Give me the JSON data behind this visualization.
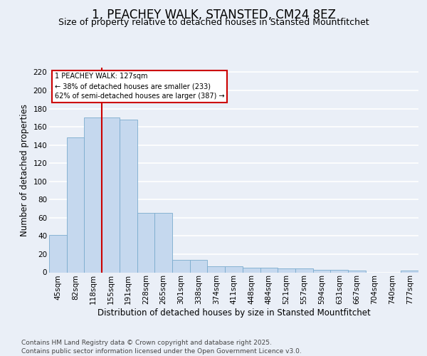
{
  "title": "1, PEACHEY WALK, STANSTED, CM24 8EZ",
  "subtitle": "Size of property relative to detached houses in Stansted Mountfitchet",
  "xlabel": "Distribution of detached houses by size in Stansted Mountfitchet",
  "ylabel": "Number of detached properties",
  "categories": [
    "45sqm",
    "82sqm",
    "118sqm",
    "155sqm",
    "191sqm",
    "228sqm",
    "265sqm",
    "301sqm",
    "338sqm",
    "374sqm",
    "411sqm",
    "448sqm",
    "484sqm",
    "521sqm",
    "557sqm",
    "594sqm",
    "631sqm",
    "667sqm",
    "704sqm",
    "740sqm",
    "777sqm"
  ],
  "values": [
    41,
    148,
    170,
    170,
    168,
    65,
    65,
    14,
    14,
    7,
    7,
    5,
    5,
    4,
    4,
    3,
    3,
    2,
    0,
    0,
    2
  ],
  "bar_color": "#c5d8ee",
  "bar_edge_color": "#7aabce",
  "annotation_text_lines": [
    "1 PEACHEY WALK: 127sqm",
    "← 38% of detached houses are smaller (233)",
    "62% of semi-detached houses are larger (387) →"
  ],
  "annotation_box_color": "#ffffff",
  "annotation_box_edge": "#cc0000",
  "red_line_color": "#cc0000",
  "red_line_x": 2.48,
  "ylim": [
    0,
    225
  ],
  "yticks": [
    0,
    20,
    40,
    60,
    80,
    100,
    120,
    140,
    160,
    180,
    200,
    220
  ],
  "footer": "Contains HM Land Registry data © Crown copyright and database right 2025.\nContains public sector information licensed under the Open Government Licence v3.0.",
  "background_color": "#eaeff7",
  "plot_bg_color": "#eaeff7",
  "grid_color": "#ffffff",
  "title_fontsize": 12,
  "subtitle_fontsize": 9,
  "axis_label_fontsize": 8.5,
  "tick_fontsize": 7.5,
  "footer_fontsize": 6.5
}
